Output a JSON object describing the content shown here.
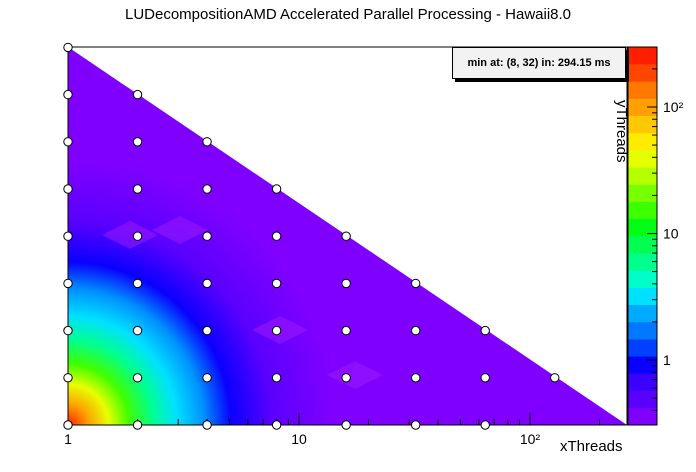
{
  "chart_data": {
    "type": "heatmap",
    "title": "LUDecompositionAMD Accelerated Parallel Processing - Hawaii8.0",
    "xlabel": "xThreads",
    "ylabel": "yThreads",
    "x_scale": "log",
    "y_scale": "log",
    "z_scale": "log",
    "x_ticks": [
      "1",
      "10",
      "10²"
    ],
    "z_ticks": [
      "1",
      "10",
      "10²"
    ],
    "annotation": "min at: (8, 32) in: 294.15 ms",
    "sample_points": [
      [
        1,
        1
      ],
      [
        2,
        1
      ],
      [
        4,
        1
      ],
      [
        8,
        1
      ],
      [
        16,
        1
      ],
      [
        32,
        1
      ],
      [
        64,
        1
      ],
      [
        1,
        2
      ],
      [
        2,
        2
      ],
      [
        4,
        2
      ],
      [
        8,
        2
      ],
      [
        16,
        2
      ],
      [
        32,
        2
      ],
      [
        64,
        2
      ],
      [
        128,
        2
      ],
      [
        1,
        4
      ],
      [
        2,
        4
      ],
      [
        4,
        4
      ],
      [
        8,
        4
      ],
      [
        16,
        4
      ],
      [
        32,
        4
      ],
      [
        64,
        4
      ],
      [
        1,
        8
      ],
      [
        2,
        8
      ],
      [
        4,
        8
      ],
      [
        8,
        8
      ],
      [
        16,
        8
      ],
      [
        32,
        8
      ],
      [
        1,
        16
      ],
      [
        2,
        16
      ],
      [
        4,
        16
      ],
      [
        8,
        16
      ],
      [
        16,
        16
      ],
      [
        1,
        32
      ],
      [
        2,
        32
      ],
      [
        4,
        32
      ],
      [
        8,
        32
      ],
      [
        1,
        64
      ],
      [
        2,
        64
      ],
      [
        4,
        64
      ],
      [
        1,
        128
      ],
      [
        2,
        128
      ],
      [
        1,
        256
      ]
    ],
    "palette": [
      "#7f00ff",
      "#5a00ff",
      "#3c00ff",
      "#0a00ff",
      "#0041ff",
      "#0078ff",
      "#00aaff",
      "#00e1ff",
      "#00ffc8",
      "#00ff8c",
      "#00ff50",
      "#00ff14",
      "#3cff00",
      "#78ff00",
      "#b4ff00",
      "#e6ff00",
      "#ffeb00",
      "#ffc800",
      "#ffa000",
      "#ff7800",
      "#ff4600",
      "#ff1e00"
    ]
  }
}
